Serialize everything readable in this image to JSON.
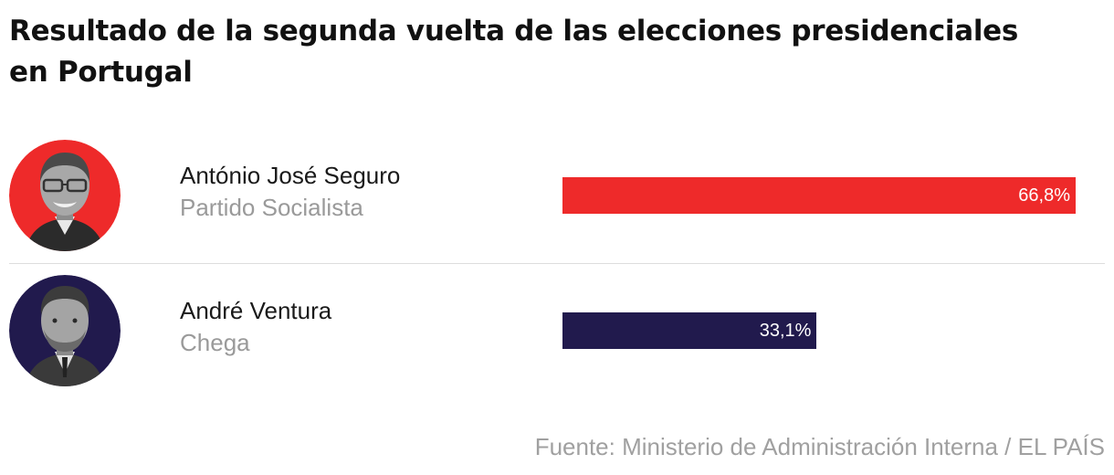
{
  "chart_data": {
    "type": "bar",
    "orientation": "horizontal",
    "title": "Resultado de la segunda vuelta de las elecciones presidenciales en Portugal",
    "categories": [
      "António José Seguro",
      "André Ventura"
    ],
    "parties": [
      "Partido Socialista",
      "Chega"
    ],
    "values": [
      66.8,
      33.1
    ],
    "value_labels": [
      "66,8%",
      "33,1%"
    ],
    "colors": [
      "#ee2a2a",
      "#211a4d"
    ],
    "xlim": [
      0,
      66.8
    ],
    "grid": false,
    "source": "Fuente: Ministerio de Administración Interna / EL PAÍS"
  },
  "candidates": [
    {
      "name": "António José Seguro",
      "party": "Partido Socialista",
      "value": 66.8,
      "label": "66,8%",
      "color": "#ee2a2a",
      "avatar_color": "#ee2a2a",
      "photo": "candidate-photo-icon"
    },
    {
      "name": "André Ventura",
      "party": "Chega",
      "value": 33.1,
      "label": "33,1%",
      "color": "#211a4d",
      "avatar_color": "#211a4d",
      "photo": "candidate-photo-icon"
    }
  ]
}
